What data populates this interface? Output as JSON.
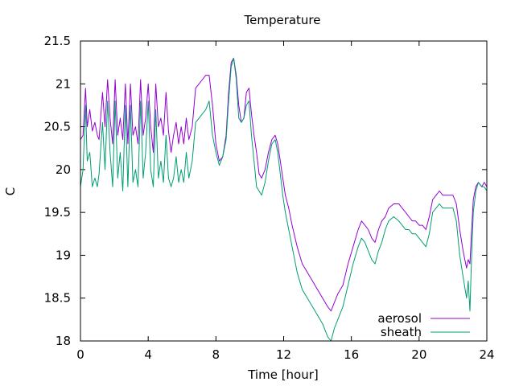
{
  "chart_data": {
    "type": "line",
    "title": "Temperature",
    "xlabel": "Time [hour]",
    "ylabel": "C",
    "xlim": [
      0,
      24
    ],
    "ylim": [
      18,
      21.5
    ],
    "xticks": [
      0,
      4,
      8,
      12,
      16,
      20,
      24
    ],
    "yticks": [
      18,
      18.5,
      19,
      19.5,
      20,
      20.5,
      21,
      21.5
    ],
    "xtick_labels": [
      "0",
      "4",
      "8",
      "12",
      "16",
      "20",
      "24"
    ],
    "ytick_labels": [
      "18",
      "18.5",
      "19",
      "19.5",
      "20",
      "20.5",
      "21",
      "21.5"
    ],
    "grid": false,
    "legend_position": "bottom-right",
    "series": [
      {
        "name": "aerosol",
        "color": "#9400D3",
        "x": [
          0,
          0.15,
          0.3,
          0.4,
          0.55,
          0.7,
          0.85,
          1.0,
          1.1,
          1.3,
          1.45,
          1.6,
          1.75,
          1.9,
          2.05,
          2.2,
          2.35,
          2.5,
          2.65,
          2.8,
          2.95,
          3.1,
          3.25,
          3.4,
          3.55,
          3.7,
          3.85,
          4.0,
          4.15,
          4.3,
          4.45,
          4.6,
          4.75,
          4.9,
          5.05,
          5.2,
          5.35,
          5.5,
          5.65,
          5.8,
          5.95,
          6.1,
          6.25,
          6.4,
          6.6,
          6.8,
          7.0,
          7.2,
          7.4,
          7.6,
          7.8,
          8.0,
          8.2,
          8.4,
          8.6,
          8.75,
          8.9,
          9.05,
          9.2,
          9.35,
          9.5,
          9.65,
          9.8,
          9.95,
          10.1,
          10.25,
          10.4,
          10.55,
          10.7,
          10.9,
          11.1,
          11.3,
          11.5,
          11.65,
          11.8,
          11.95,
          12.1,
          12.3,
          12.5,
          12.8,
          13.1,
          13.4,
          13.7,
          14.0,
          14.3,
          14.6,
          14.8,
          15.0,
          15.2,
          15.5,
          15.8,
          16.1,
          16.4,
          16.6,
          16.8,
          17.0,
          17.2,
          17.4,
          17.6,
          17.8,
          18.0,
          18.2,
          18.5,
          18.8,
          19.0,
          19.2,
          19.4,
          19.6,
          19.8,
          20.0,
          20.2,
          20.4,
          20.6,
          20.8,
          21.0,
          21.2,
          21.4,
          21.6,
          21.8,
          22.0,
          22.2,
          22.4,
          22.6,
          22.8,
          22.9,
          23.0,
          23.1,
          23.2,
          23.35,
          23.5,
          23.7,
          23.85,
          24.0
        ],
        "y": [
          20.35,
          20.4,
          20.95,
          20.5,
          20.7,
          20.45,
          20.55,
          20.4,
          20.35,
          20.9,
          20.5,
          21.05,
          20.6,
          20.3,
          21.05,
          20.4,
          20.6,
          20.35,
          21.0,
          20.3,
          21.0,
          20.4,
          20.5,
          20.3,
          21.05,
          20.4,
          20.6,
          21.0,
          20.5,
          20.2,
          21.0,
          20.5,
          20.6,
          20.4,
          20.9,
          20.45,
          20.2,
          20.4,
          20.55,
          20.3,
          20.5,
          20.3,
          20.6,
          20.35,
          20.5,
          20.95,
          21.0,
          21.05,
          21.1,
          21.1,
          20.75,
          20.3,
          20.1,
          20.15,
          20.4,
          20.9,
          21.25,
          21.3,
          21.1,
          20.75,
          20.55,
          20.6,
          20.9,
          20.95,
          20.65,
          20.4,
          20.2,
          19.95,
          19.9,
          20.0,
          20.2,
          20.35,
          20.4,
          20.3,
          20.1,
          19.9,
          19.7,
          19.55,
          19.35,
          19.1,
          18.9,
          18.8,
          18.7,
          18.6,
          18.5,
          18.4,
          18.35,
          18.45,
          18.55,
          18.65,
          18.9,
          19.1,
          19.3,
          19.4,
          19.35,
          19.3,
          19.2,
          19.15,
          19.3,
          19.4,
          19.45,
          19.55,
          19.6,
          19.6,
          19.55,
          19.5,
          19.45,
          19.4,
          19.4,
          19.35,
          19.35,
          19.3,
          19.45,
          19.65,
          19.7,
          19.75,
          19.7,
          19.7,
          19.7,
          19.7,
          19.6,
          19.3,
          19.05,
          18.85,
          18.95,
          18.9,
          19.3,
          19.65,
          19.8,
          19.85,
          19.8,
          19.85,
          19.8
        ],
        "legend_label": "aerosol"
      },
      {
        "name": "sheath",
        "color": "#009E73",
        "x": [
          0,
          0.15,
          0.3,
          0.4,
          0.55,
          0.7,
          0.85,
          1.0,
          1.1,
          1.3,
          1.45,
          1.6,
          1.75,
          1.9,
          2.05,
          2.2,
          2.35,
          2.5,
          2.65,
          2.8,
          2.95,
          3.1,
          3.25,
          3.4,
          3.55,
          3.7,
          3.85,
          4.0,
          4.15,
          4.3,
          4.45,
          4.6,
          4.75,
          4.9,
          5.05,
          5.2,
          5.35,
          5.5,
          5.65,
          5.8,
          5.95,
          6.1,
          6.25,
          6.4,
          6.6,
          6.8,
          7.0,
          7.2,
          7.4,
          7.6,
          7.8,
          8.0,
          8.2,
          8.4,
          8.6,
          8.75,
          8.9,
          9.05,
          9.2,
          9.35,
          9.5,
          9.65,
          9.8,
          9.95,
          10.1,
          10.25,
          10.4,
          10.55,
          10.7,
          10.9,
          11.1,
          11.3,
          11.5,
          11.65,
          11.8,
          11.95,
          12.1,
          12.3,
          12.5,
          12.8,
          13.1,
          13.4,
          13.7,
          14.0,
          14.3,
          14.6,
          14.8,
          15.0,
          15.2,
          15.5,
          15.8,
          16.1,
          16.4,
          16.6,
          16.8,
          17.0,
          17.2,
          17.4,
          17.6,
          17.8,
          18.0,
          18.2,
          18.5,
          18.8,
          19.0,
          19.2,
          19.4,
          19.6,
          19.8,
          20.0,
          20.2,
          20.4,
          20.6,
          20.8,
          21.0,
          21.2,
          21.4,
          21.6,
          21.8,
          22.0,
          22.2,
          22.4,
          22.6,
          22.8,
          22.9,
          23.0,
          23.1,
          23.2,
          23.35,
          23.5,
          23.7,
          23.85,
          24.0
        ],
        "y": [
          19.8,
          20.0,
          20.75,
          20.1,
          20.2,
          19.8,
          19.9,
          19.8,
          19.95,
          20.55,
          20.0,
          20.8,
          20.2,
          19.8,
          20.8,
          19.9,
          20.2,
          19.75,
          20.75,
          19.8,
          20.75,
          19.85,
          20.0,
          19.8,
          20.8,
          19.9,
          20.2,
          20.8,
          20.0,
          19.8,
          20.7,
          19.9,
          20.1,
          19.85,
          20.4,
          19.9,
          19.8,
          19.9,
          20.15,
          19.85,
          20.0,
          19.85,
          20.2,
          19.9,
          20.1,
          20.55,
          20.6,
          20.65,
          20.7,
          20.8,
          20.4,
          20.2,
          20.05,
          20.15,
          20.35,
          20.8,
          21.2,
          21.3,
          21.05,
          20.6,
          20.55,
          20.6,
          20.75,
          20.8,
          20.4,
          20.1,
          19.8,
          19.75,
          19.7,
          19.85,
          20.1,
          20.3,
          20.35,
          20.2,
          19.95,
          19.7,
          19.5,
          19.3,
          19.1,
          18.8,
          18.6,
          18.5,
          18.4,
          18.3,
          18.2,
          18.05,
          18.0,
          18.15,
          18.25,
          18.4,
          18.65,
          18.9,
          19.1,
          19.2,
          19.15,
          19.05,
          18.95,
          18.9,
          19.05,
          19.15,
          19.3,
          19.4,
          19.45,
          19.4,
          19.35,
          19.3,
          19.3,
          19.25,
          19.25,
          19.2,
          19.15,
          19.1,
          19.25,
          19.5,
          19.55,
          19.6,
          19.55,
          19.55,
          19.55,
          19.55,
          19.4,
          19.0,
          18.75,
          18.5,
          18.7,
          18.35,
          19.0,
          19.5,
          19.75,
          19.85,
          19.8,
          19.8,
          19.75
        ],
        "legend_label": "sheath"
      }
    ]
  }
}
